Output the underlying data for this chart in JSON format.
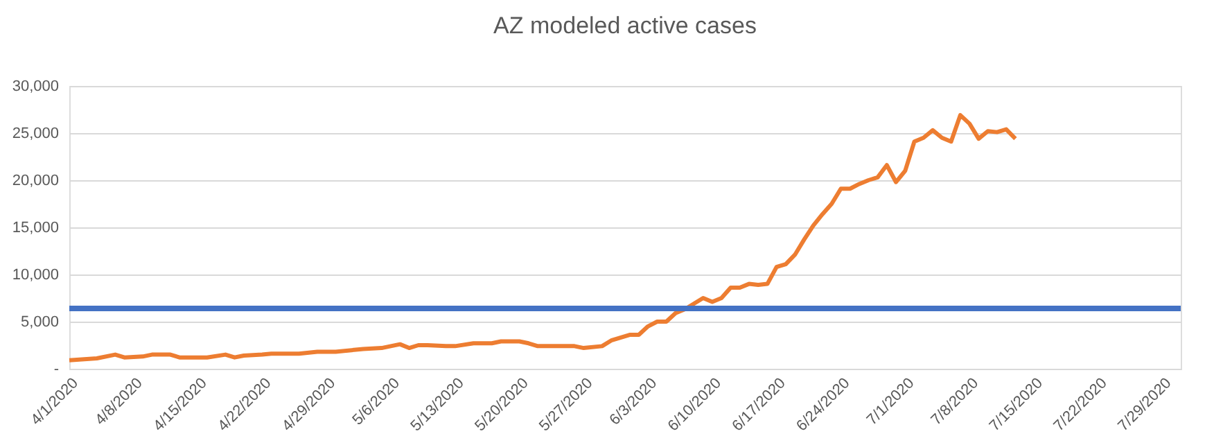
{
  "chart_data": {
    "type": "line",
    "title": "AZ modeled active cases",
    "x": [
      "2020-04-01",
      "2020-04-04",
      "2020-04-06",
      "2020-04-07",
      "2020-04-09",
      "2020-04-10",
      "2020-04-12",
      "2020-04-13",
      "2020-04-16",
      "2020-04-18",
      "2020-04-19",
      "2020-04-20",
      "2020-04-22",
      "2020-04-23",
      "2020-04-26",
      "2020-04-28",
      "2020-04-30",
      "2020-05-02",
      "2020-05-03",
      "2020-05-05",
      "2020-05-07",
      "2020-05-08",
      "2020-05-09",
      "2020-05-10",
      "2020-05-12",
      "2020-05-13",
      "2020-05-15",
      "2020-05-17",
      "2020-05-18",
      "2020-05-20",
      "2020-05-21",
      "2020-05-22",
      "2020-05-26",
      "2020-05-27",
      "2020-05-29",
      "2020-05-30",
      "2020-06-01",
      "2020-06-02",
      "2020-06-03",
      "2020-06-04",
      "2020-06-05",
      "2020-06-06",
      "2020-06-07",
      "2020-06-09",
      "2020-06-10",
      "2020-06-11",
      "2020-06-12",
      "2020-06-13",
      "2020-06-14",
      "2020-06-15",
      "2020-06-16",
      "2020-06-17",
      "2020-06-18",
      "2020-06-19",
      "2020-06-20",
      "2020-06-21",
      "2020-06-22",
      "2020-06-23",
      "2020-06-24",
      "2020-06-25",
      "2020-06-26",
      "2020-06-27",
      "2020-06-28",
      "2020-06-29",
      "2020-06-30",
      "2020-07-01",
      "2020-07-02",
      "2020-07-03",
      "2020-07-04",
      "2020-07-05",
      "2020-07-06",
      "2020-07-07",
      "2020-07-08",
      "2020-07-09",
      "2020-07-10",
      "2020-07-11",
      "2020-07-12",
      "2020-07-13"
    ],
    "series": [
      {
        "color": "#ed7d31",
        "values": [
          900,
          1100,
          1500,
          1200,
          1300,
          1500,
          1500,
          1200,
          1200,
          1500,
          1200,
          1400,
          1500,
          1600,
          1600,
          1800,
          1800,
          2000,
          2100,
          2200,
          2600,
          2200,
          2500,
          2500,
          2400,
          2400,
          2700,
          2700,
          2900,
          2900,
          2700,
          2400,
          2400,
          2200,
          2400,
          3000,
          3600,
          3600,
          4500,
          5000,
          5000,
          5900,
          6300,
          7500,
          7100,
          7500,
          8600,
          8600,
          9000,
          8900,
          9000,
          10800,
          11100,
          12100,
          13700,
          15200,
          16400,
          17500,
          19100,
          19100,
          19600,
          20000,
          20300,
          21600,
          19800,
          21000,
          24100,
          24500,
          25300,
          24500,
          24100,
          26900,
          26000,
          24400,
          25200,
          25100,
          25400,
          24400
        ]
      }
    ],
    "ref_lines": [
      {
        "axis": "y",
        "value": 6400,
        "color": "#4472c4",
        "line_style": "solid"
      }
    ],
    "xlim": [
      "2020-04-01",
      "2020-07-31"
    ],
    "xticks": [
      {
        "value": "2020-04-01",
        "label": "4/1/2020"
      },
      {
        "value": "2020-04-08",
        "label": "4/8/2020"
      },
      {
        "value": "2020-04-15",
        "label": "4/15/2020"
      },
      {
        "value": "2020-04-22",
        "label": "4/22/2020"
      },
      {
        "value": "2020-04-29",
        "label": "4/29/2020"
      },
      {
        "value": "2020-05-06",
        "label": "5/6/2020"
      },
      {
        "value": "2020-05-13",
        "label": "5/13/2020"
      },
      {
        "value": "2020-05-20",
        "label": "5/20/2020"
      },
      {
        "value": "2020-05-27",
        "label": "5/27/2020"
      },
      {
        "value": "2020-06-03",
        "label": "6/3/2020"
      },
      {
        "value": "2020-06-10",
        "label": "6/10/2020"
      },
      {
        "value": "2020-06-17",
        "label": "6/17/2020"
      },
      {
        "value": "2020-06-24",
        "label": "6/24/2020"
      },
      {
        "value": "2020-07-01",
        "label": "7/1/2020"
      },
      {
        "value": "2020-07-08",
        "label": "7/8/2020"
      },
      {
        "value": "2020-07-15",
        "label": "7/15/2020"
      },
      {
        "value": "2020-07-22",
        "label": "7/22/2020"
      },
      {
        "value": "2020-07-29",
        "label": "7/29/2020"
      }
    ],
    "ylim": [
      0,
      30000
    ],
    "yticks": [
      {
        "value": 0,
        "label": "-"
      },
      {
        "value": 5000,
        "label": "5,000"
      },
      {
        "value": 10000,
        "label": "10,000"
      },
      {
        "value": 15000,
        "label": "15,000"
      },
      {
        "value": 20000,
        "label": "20,000"
      },
      {
        "value": 25000,
        "label": "25,000"
      },
      {
        "value": 30000,
        "label": "30,000"
      }
    ],
    "grid": "y",
    "line_style": "solid"
  }
}
